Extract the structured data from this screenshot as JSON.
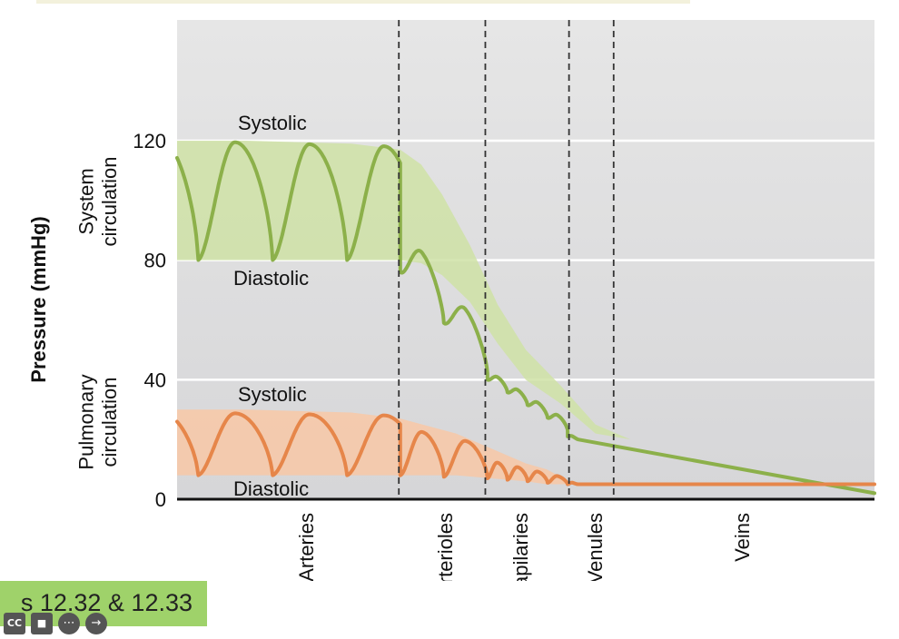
{
  "chart_data": {
    "type": "line",
    "title": "",
    "ylabel": "Pressure (mmHg)",
    "xlabel": "",
    "ylim": [
      0,
      160
    ],
    "yticks": [
      0,
      40,
      80,
      120
    ],
    "ytick_labels": [
      "0",
      "40",
      "80",
      "120"
    ],
    "categories": [
      "Arteries",
      "Arterioles",
      "Capilaries",
      "Venules",
      "Veins"
    ],
    "section_labels": {
      "systemic": "System circulation",
      "pulmonary": "Pulmonary circulation"
    },
    "annotations": {
      "systemic_systolic": "Systolic",
      "systemic_diastolic": "Diastolic",
      "pulmonary_systolic": "Systolic",
      "pulmonary_diastolic": "Diastolic"
    },
    "series": [
      {
        "name": "Systemic circulation",
        "color": "#8cb04a",
        "band_color": "#cfe2a6",
        "band": {
          "x": [
            0,
            10,
            25,
            32,
            35,
            38,
            42,
            46,
            50,
            55,
            60,
            65,
            70,
            100
          ],
          "upper": [
            120,
            120,
            119,
            117,
            112,
            102,
            85,
            65,
            50,
            38,
            25,
            20,
            18,
            2
          ],
          "lower": [
            80,
            80,
            80,
            80,
            79,
            75,
            66,
            52,
            40,
            32,
            22,
            20,
            18,
            2
          ]
        },
        "segments": [
          {
            "from": 0,
            "to": 32,
            "cycles": 3,
            "phase": 0.72,
            "upper_start": 120,
            "upper_end": 118,
            "lower_start": 80,
            "lower_end": 80
          },
          {
            "from": 32,
            "to": 44.5,
            "cycles": 2,
            "phase": 0.0,
            "upper_start": 92,
            "upper_end": 54,
            "lower_start": 76,
            "lower_end": 42
          },
          {
            "from": 44.5,
            "to": 56,
            "cycles": 4,
            "phase": 0.0,
            "upper_start": 43,
            "upper_end": 26,
            "lower_start": 40,
            "lower_end": 23
          },
          {
            "from": 56,
            "to": 57.5,
            "cycles": 1,
            "phase": 0.0,
            "upper_start": 22,
            "upper_end": 20,
            "lower_start": 21,
            "lower_end": 20
          }
        ],
        "tail": {
          "x": [
            57.5,
            100
          ],
          "y": [
            20,
            2
          ]
        }
      },
      {
        "name": "Pulmonary circulation",
        "color": "#e6864a",
        "band_color": "#f8c8a6",
        "band": {
          "x": [
            0,
            10,
            25,
            32,
            40,
            45,
            50,
            53,
            57,
            100
          ],
          "upper": [
            30,
            30,
            29,
            27,
            22,
            17,
            12,
            10,
            5,
            5
          ],
          "lower": [
            8,
            8,
            8,
            8,
            8,
            7,
            6,
            5,
            5,
            5
          ]
        },
        "segments": [
          {
            "from": 0,
            "to": 32,
            "cycles": 3,
            "phase": 0.72,
            "upper_start": 29,
            "upper_end": 28,
            "lower_start": 8,
            "lower_end": 8
          },
          {
            "from": 32,
            "to": 44.5,
            "cycles": 2,
            "phase": 0.0,
            "upper_start": 24,
            "upper_end": 18,
            "lower_start": 8,
            "lower_end": 7
          },
          {
            "from": 44.5,
            "to": 56,
            "cycles": 4,
            "phase": 0.0,
            "upper_start": 13,
            "upper_end": 7,
            "lower_start": 7,
            "lower_end": 5
          },
          {
            "from": 56,
            "to": 57.5,
            "cycles": 1,
            "phase": 0.0,
            "upper_start": 6,
            "upper_end": 5,
            "lower_start": 5,
            "lower_end": 5
          }
        ],
        "tail": {
          "x": [
            57.5,
            100
          ],
          "y": [
            5,
            5
          ]
        }
      }
    ]
  },
  "caption": {
    "text": "s 12.32 & 12.33"
  },
  "controls": [
    {
      "name": "cc-button",
      "label": "CC"
    },
    {
      "name": "video-button",
      "label": "■"
    },
    {
      "name": "more-button",
      "label": "⋯"
    },
    {
      "name": "next-button",
      "label": "→"
    }
  ]
}
